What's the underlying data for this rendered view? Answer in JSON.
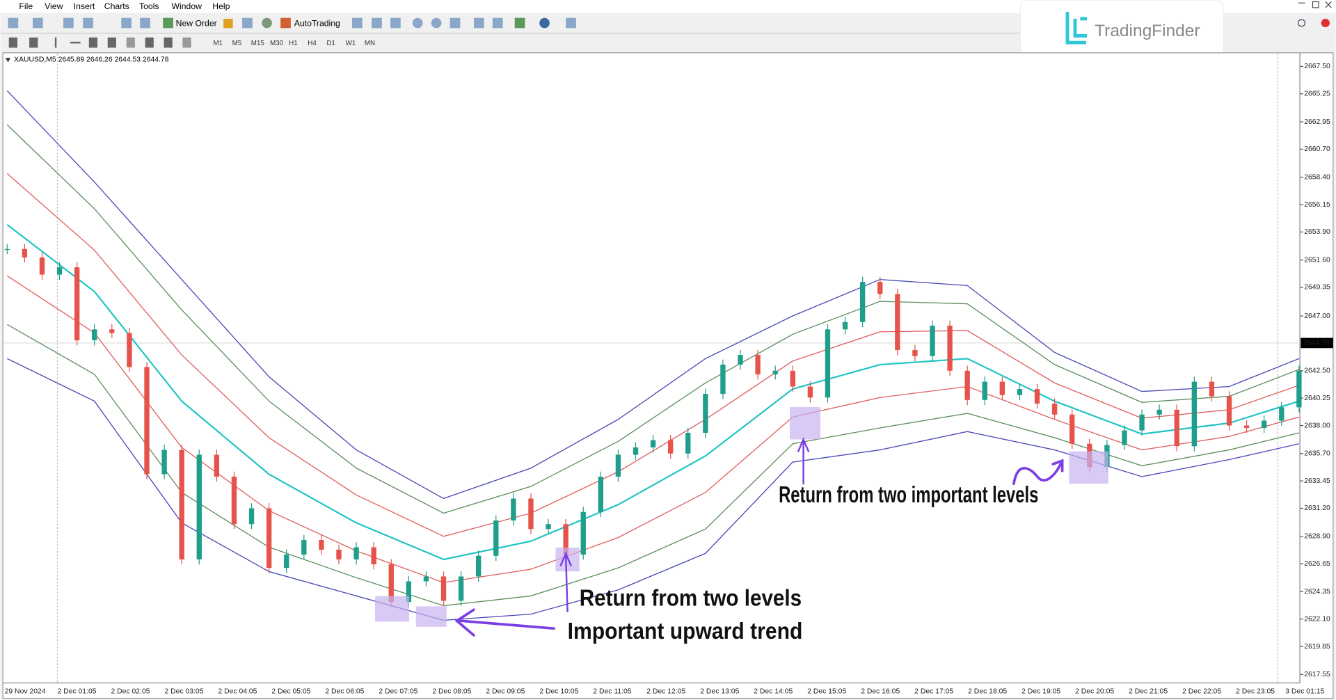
{
  "menu": [
    "File",
    "View",
    "Insert",
    "Charts",
    "Tools",
    "Window",
    "Help"
  ],
  "toolbar": {
    "new_order": "New Order",
    "auto_trading": "AutoTrading",
    "timeframes": [
      "M1",
      "M5",
      "M15",
      "M30",
      "H1",
      "H4",
      "D1",
      "W1",
      "MN"
    ]
  },
  "logo": "TradingFinder",
  "chart": {
    "symbol_info": "XAUUSD,M5  2645.89 2646.26 2644.53 2644.78",
    "current_price": 2644.78,
    "price_ticks": [
      {
        "value": 2667.5,
        "label": "2667.50"
      },
      2665.25,
      2662.95,
      {
        "value": 2660.7,
        "label": "2660.70"
      },
      {
        "value": 2658.4,
        "label": "2658.40"
      },
      2656.15,
      {
        "value": 2653.9,
        "label": "2653.90"
      },
      {
        "value": 2651.6,
        "label": "2651.60"
      },
      2649.35,
      {
        "value": 2647,
        "label": "2647.00"
      },
      {
        "value": 2642.5,
        "label": "2642.50"
      },
      2640.25,
      {
        "value": 2638,
        "label": "2638.00"
      },
      {
        "value": 2635.7,
        "label": "2635.70"
      },
      2633.45,
      {
        "value": 2631.2,
        "label": "2631.20"
      },
      {
        "value": 2628.9,
        "label": "2628.90"
      },
      2626.65,
      2624.35,
      {
        "value": 2622.1,
        "label": "2622.10"
      },
      2619.85,
      2617.55
    ],
    "time_labels": [
      "29 Nov 2024",
      "2 Dec 01:05",
      "2 Dec 02:05",
      "2 Dec 03:05",
      "2 Dec 04:05",
      "2 Dec 05:05",
      "2 Dec 06:05",
      "2 Dec 07:05",
      "2 Dec 08:05",
      "2 Dec 09:05",
      "2 Dec 10:05",
      "2 Dec 11:05",
      "2 Dec 12:05",
      "2 Dec 13:05",
      "2 Dec 14:05",
      "2 Dec 15:05",
      "2 Dec 16:05",
      "2 Dec 17:05",
      "2 Dec 18:05",
      "2 Dec 19:05",
      "2 Dec 20:05",
      "2 Dec 21:05",
      "2 Dec 22:05",
      "2 Dec 23:05",
      "3 Dec 01:15"
    ],
    "closes": [
      2652.5,
      2651.8,
      2650.4,
      2651.0,
      2645.0,
      2645.9,
      2645.6,
      2642.8,
      2634.0,
      2636.0,
      2627.0,
      2635.6,
      2633.8,
      2629.9,
      2631.2,
      2626.3,
      2627.4,
      2628.6,
      2627.8,
      2627.0,
      2628.0,
      2626.6,
      2623.5,
      2625.2,
      2625.6,
      2623.6,
      2625.6,
      2627.3,
      2630.2,
      2632.0,
      2629.5,
      2629.9,
      2627.4,
      2630.9,
      2633.8,
      2635.6,
      2636.2,
      2636.8,
      2635.7,
      2637.4,
      2640.6,
      2643.0,
      2643.8,
      2642.2,
      2642.5,
      2641.2,
      2640.3,
      2645.9,
      2646.5,
      2649.8,
      2648.8,
      2644.2,
      2643.7,
      2646.2,
      2642.5,
      2640.1,
      2641.6,
      2640.5,
      2641.0,
      2639.8,
      2638.9,
      2636.5,
      2634.6,
      2636.4,
      2637.6,
      2638.9,
      2639.3,
      2636.3,
      2641.6,
      2640.4,
      2638.0,
      2637.8,
      2638.4,
      2639.5,
      2642.5
    ],
    "bands": [
      {
        "color": "#4b4bb8",
        "values": [
          2665.5,
          2658.0,
          2650.0,
          2642.0,
          2636.0,
          2632.0,
          2634.5,
          2638.5,
          2643.5,
          2647.0,
          2650.0,
          2649.5,
          2644.0,
          2640.8,
          2641.2,
          2643.5
        ]
      },
      {
        "color": "#5f8f5f",
        "values": [
          2662.7,
          2655.8,
          2647.5,
          2640.0,
          2634.5,
          2630.8,
          2633.0,
          2636.7,
          2641.5,
          2645.5,
          2648.2,
          2648.0,
          2643.0,
          2639.9,
          2640.4,
          2642.6
        ]
      },
      {
        "color": "#e06060",
        "values": [
          2658.7,
          2652.4,
          2643.8,
          2637.0,
          2632.3,
          2628.9,
          2630.8,
          2634.2,
          2638.5,
          2643.3,
          2645.7,
          2645.8,
          2641.5,
          2638.6,
          2639.3,
          2641.3
        ]
      },
      {
        "color": "#20c4c4",
        "values": [
          2654.5,
          2649.0,
          2640.0,
          2634.0,
          2630.0,
          2627.0,
          2628.5,
          2631.5,
          2635.5,
          2641.0,
          2643.0,
          2643.5,
          2640.0,
          2637.3,
          2638.2,
          2640.0
        ]
      },
      {
        "color": "#e06060",
        "values": [
          2650.3,
          2645.6,
          2636.2,
          2631.0,
          2627.7,
          2625.1,
          2626.2,
          2628.8,
          2632.5,
          2638.7,
          2640.3,
          2641.2,
          2638.5,
          2636.0,
          2637.1,
          2638.7
        ]
      },
      {
        "color": "#5f8f5f",
        "values": [
          2646.3,
          2642.2,
          2632.5,
          2628.0,
          2625.5,
          2623.2,
          2624.0,
          2626.3,
          2629.5,
          2636.5,
          2637.8,
          2639.0,
          2637.0,
          2634.7,
          2636.0,
          2637.4
        ]
      },
      {
        "color": "#4b4bb8",
        "values": [
          2643.5,
          2640.0,
          2630.0,
          2626.0,
          2624.0,
          2622.0,
          2622.5,
          2624.5,
          2627.5,
          2635.0,
          2636.0,
          2637.5,
          2636.0,
          2633.8,
          2635.2,
          2636.5
        ]
      }
    ],
    "annotations": [
      "Return from two important levels",
      "Return from two levels",
      "Important upward trend"
    ]
  }
}
